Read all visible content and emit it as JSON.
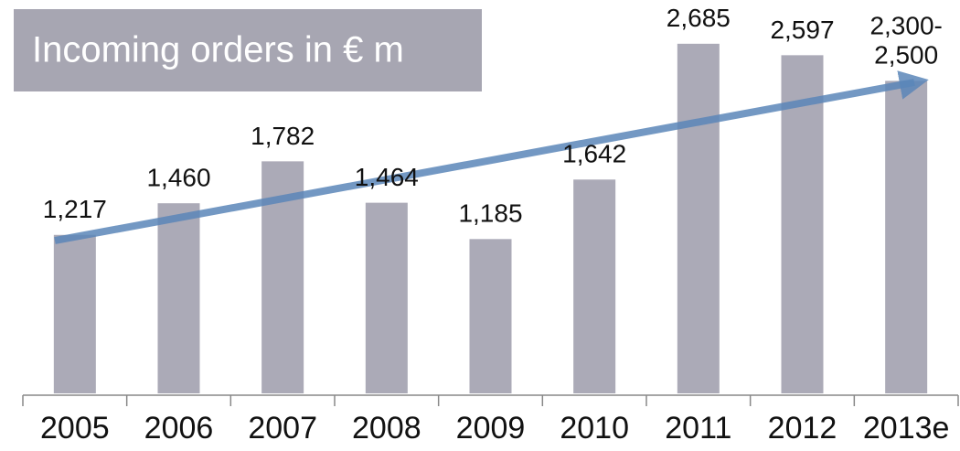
{
  "chart_data": {
    "type": "bar",
    "title": "Incoming orders in € m",
    "categories": [
      "2005",
      "2006",
      "2007",
      "2008",
      "2009",
      "2010",
      "2011",
      "2012",
      "2013e"
    ],
    "values": [
      1217,
      1460,
      1782,
      1464,
      1185,
      1642,
      2685,
      2597,
      2400
    ],
    "value_labels": [
      "1,217",
      "1,460",
      "1,782",
      "1,464",
      "1,185",
      "1,642",
      "2,685",
      "2,597",
      "2,300-2,500"
    ],
    "color": "#abaab7",
    "ylim": [
      0,
      3000
    ]
  }
}
